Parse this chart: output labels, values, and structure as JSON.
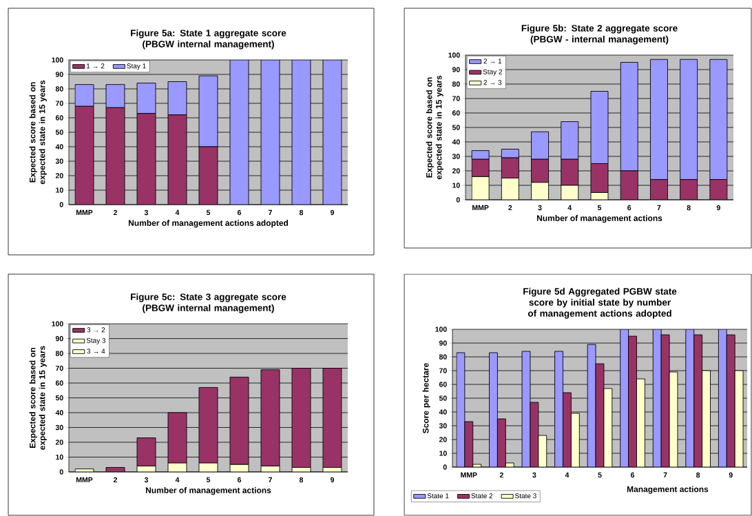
{
  "chart_data": [
    {
      "type": "bar",
      "stacked": true,
      "title": "Figure 5a: State 1 aggregate score",
      "subtitle": "(PBGW internal management)",
      "xlabel": "Number of management actions adopted",
      "ylabel": "Expected score based on expected state in 15 years",
      "categories": [
        "MMP",
        "2",
        "3",
        "4",
        "5",
        "6",
        "7",
        "8",
        "9"
      ],
      "series": [
        {
          "name": "1 → 2",
          "color": "#993366",
          "values": [
            68,
            67,
            63,
            62,
            40,
            0,
            0,
            0,
            0
          ]
        },
        {
          "name": "Stay 1",
          "color": "#9999ff",
          "values": [
            15,
            16,
            21,
            23,
            49,
            100,
            100,
            100,
            100
          ]
        }
      ],
      "ylim": [
        0,
        100
      ],
      "yticks": [
        0,
        10,
        20,
        30,
        40,
        50,
        60,
        70,
        80,
        90,
        100
      ],
      "grid": "y",
      "legend": "top left"
    },
    {
      "type": "bar",
      "stacked": true,
      "title": "Figure 5b: State 2 aggregate score",
      "subtitle": "(PBGW - internal management)",
      "xlabel": "Number of management actions",
      "ylabel": "Expected score based on expected state in 15 years",
      "categories": [
        "MMP",
        "2",
        "3",
        "4",
        "5",
        "6",
        "7",
        "8",
        "9"
      ],
      "series": [
        {
          "name": "2 → 3",
          "color": "#ffffcc",
          "values": [
            16,
            15,
            12,
            10,
            5,
            0,
            0,
            0,
            0
          ]
        },
        {
          "name": "Stay 2",
          "color": "#993366",
          "values": [
            12,
            14,
            16,
            18,
            20,
            20,
            14,
            14,
            14
          ]
        },
        {
          "name": "2 → 1",
          "color": "#9999ff",
          "values": [
            6,
            6,
            19,
            26,
            50,
            75,
            83,
            83,
            83
          ]
        }
      ],
      "ylim": [
        0,
        100
      ],
      "yticks": [
        0,
        10,
        20,
        30,
        40,
        50,
        60,
        70,
        80,
        90,
        100
      ],
      "grid": "y",
      "legend": "top left"
    },
    {
      "type": "bar",
      "stacked": true,
      "title": "Figure 5c: State 3 aggregate score",
      "subtitle": "(PBGW internal management)",
      "xlabel": "Number of management actions",
      "ylabel": "Expected score based on expected state in 15 years",
      "categories": [
        "MMP",
        "2",
        "3",
        "4",
        "5",
        "6",
        "7",
        "8",
        "9"
      ],
      "series": [
        {
          "name": "3 → 4",
          "color": "#ffffcc",
          "values": [
            0,
            0,
            0,
            0,
            0,
            0,
            0,
            0,
            0
          ]
        },
        {
          "name": "Stay 3",
          "color": "#ffffcc",
          "values": [
            2,
            0,
            4,
            6,
            6,
            5,
            4,
            3,
            3
          ]
        },
        {
          "name": "3 → 2",
          "color": "#993366",
          "values": [
            0,
            3,
            19,
            34,
            51,
            59,
            65,
            67,
            67
          ]
        }
      ],
      "ylim": [
        0,
        100
      ],
      "yticks": [
        0,
        10,
        20,
        30,
        40,
        50,
        60,
        70,
        80,
        90,
        100
      ],
      "grid": "y",
      "legend": "top left"
    },
    {
      "type": "bar",
      "title": "Figure 5d  Aggregated PGBW state score by initial state by number of management actions adopted",
      "xlabel": "Management actions",
      "ylabel": "Score per hectare",
      "categories": [
        "MMP",
        "2",
        "3",
        "4",
        "5",
        "6",
        "7",
        "8",
        "9"
      ],
      "series": [
        {
          "name": "State 1",
          "color": "#9999ff",
          "values": [
            83,
            83,
            84,
            84,
            89,
            100,
            100,
            100,
            100
          ]
        },
        {
          "name": "State 2",
          "color": "#993366",
          "values": [
            33,
            35,
            47,
            54,
            75,
            95,
            96,
            96,
            96
          ]
        },
        {
          "name": "State 3",
          "color": "#ffffcc",
          "values": [
            2,
            3,
            23,
            39,
            57,
            64,
            69,
            70,
            70
          ]
        }
      ],
      "ylim": [
        0,
        100
      ],
      "yticks": [
        0,
        10,
        20,
        30,
        40,
        50,
        60,
        70,
        80,
        90,
        100
      ],
      "grid": "y",
      "legend": "bottom left"
    }
  ]
}
